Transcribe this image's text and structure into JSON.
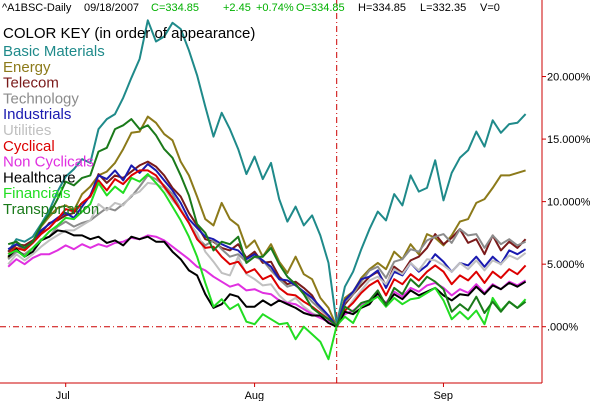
{
  "header": {
    "symbol": "^A1BSC-Daily",
    "date": "09/18/2007",
    "close": "C=334.85",
    "change": "+2.45",
    "pct": "+0.74%",
    "open": "O=334.85",
    "high": "H=334.85",
    "low": "L=332.35",
    "volume": "V=0"
  },
  "colors": {
    "background": "#ffffff",
    "axis": "#cc0000",
    "zero_line": "#cc0000",
    "header_green": "#00b000"
  },
  "chart_data": {
    "type": "line",
    "title": "COLOR KEY (in order of appearance)",
    "x_tick_labels": [
      "Jul",
      "Aug",
      "Sep"
    ],
    "x_tick_index": [
      7,
      30,
      53
    ],
    "y_tick_labels": [
      ".000%",
      "5.000%",
      "10.000%",
      "15.000%",
      "20.000%"
    ],
    "y_tick_values": [
      0,
      5,
      10,
      15,
      20
    ],
    "ylim": [
      -4.5,
      25
    ],
    "xlim": [
      -1,
      65
    ],
    "event_index": 40,
    "grid": false,
    "legend": "top-left",
    "series": [
      {
        "name": "Basic Materials",
        "color": "#1f8a8a",
        "values": [
          6.0,
          7.0,
          6.8,
          7.2,
          8.2,
          9.3,
          10.8,
          12.0,
          12.6,
          13.4,
          13.1,
          15.8,
          16.6,
          17.0,
          18.3,
          19.9,
          21.4,
          24.5,
          22.8,
          23.2,
          24.3,
          23.8,
          22.1,
          20.1,
          17.6,
          15.2,
          17.1,
          15.8,
          14.2,
          12.2,
          13.6,
          11.8,
          13.1,
          10.2,
          8.4,
          9.6,
          8.1,
          8.9,
          7.3,
          5.1,
          0.2,
          3.2,
          4.4,
          6.2,
          7.8,
          9.2,
          8.5,
          10.6,
          9.7,
          12.1,
          10.8,
          11.1,
          13.3,
          10.1,
          12.3,
          13.5,
          14.1,
          15.6,
          14.4,
          16.5,
          15.5,
          16.2,
          16.3,
          17.0
        ]
      },
      {
        "name": "Energy",
        "color": "#8c7a1a",
        "values": [
          5.5,
          6.6,
          6.1,
          6.8,
          8.0,
          8.8,
          9.5,
          9.7,
          9.3,
          10.6,
          11.2,
          12.1,
          12.4,
          13.1,
          14.2,
          15.5,
          15.6,
          16.8,
          16.3,
          15.4,
          14.9,
          13.2,
          12.1,
          10.4,
          8.6,
          8.1,
          9.9,
          8.6,
          8.1,
          6.3,
          6.9,
          5.6,
          6.6,
          5.2,
          4.3,
          5.6,
          4.2,
          3.8,
          2.3,
          1.5,
          0.0,
          2.3,
          2.8,
          3.9,
          4.6,
          5.1,
          4.6,
          6.0,
          5.4,
          6.6,
          5.8,
          7.4,
          7.1,
          6.5,
          7.3,
          8.4,
          8.6,
          9.9,
          10.2,
          11.1,
          12.1,
          12.1,
          12.3,
          12.5
        ]
      },
      {
        "name": "Telecom",
        "color": "#7a1a1a",
        "values": [
          6.0,
          6.6,
          6.5,
          6.9,
          7.5,
          8.3,
          8.5,
          8.9,
          9.1,
          9.9,
          10.4,
          12.2,
          11.5,
          12.1,
          11.9,
          12.4,
          12.9,
          13.2,
          12.8,
          12.1,
          11.1,
          10.4,
          9.1,
          8.1,
          7.0,
          6.8,
          6.3,
          6.1,
          6.6,
          5.5,
          6.0,
          5.1,
          5.2,
          4.0,
          3.4,
          3.6,
          3.1,
          2.5,
          1.4,
          0.9,
          0.0,
          1.8,
          2.6,
          3.3,
          4.0,
          4.4,
          3.3,
          4.8,
          4.3,
          5.3,
          5.6,
          6.3,
          7.4,
          6.6,
          7.1,
          7.8,
          6.7,
          7.0,
          5.8,
          7.3,
          6.1,
          6.8,
          6.3,
          7.0
        ]
      },
      {
        "name": "Technology",
        "color": "#8c8c8c",
        "values": [
          5.4,
          6.0,
          5.8,
          6.3,
          7.0,
          7.2,
          8.0,
          8.4,
          8.0,
          8.3,
          8.5,
          9.0,
          9.5,
          9.3,
          9.8,
          10.4,
          11.2,
          12.1,
          11.8,
          11.3,
          10.6,
          9.4,
          8.3,
          7.1,
          6.5,
          6.9,
          6.2,
          5.6,
          5.8,
          5.2,
          5.6,
          5.3,
          4.5,
          3.8,
          3.2,
          3.4,
          2.7,
          2.0,
          1.4,
          0.8,
          0.1,
          2.0,
          2.6,
          3.6,
          4.5,
          4.8,
          3.9,
          5.2,
          5.4,
          6.2,
          6.0,
          6.9,
          7.2,
          7.4,
          6.7,
          7.8,
          7.3,
          7.4,
          6.3,
          7.3,
          6.6,
          7.0,
          6.5,
          6.8
        ]
      },
      {
        "name": "Industrials",
        "color": "#1a1ab0",
        "values": [
          6.2,
          6.6,
          6.3,
          6.8,
          7.7,
          8.2,
          8.7,
          9.1,
          8.7,
          9.6,
          10.5,
          12.1,
          11.8,
          12.5,
          11.7,
          12.9,
          12.3,
          13.0,
          12.5,
          11.7,
          10.9,
          9.9,
          8.6,
          7.9,
          7.2,
          7.0,
          6.6,
          6.3,
          6.1,
          5.4,
          5.8,
          5.3,
          4.8,
          3.8,
          3.7,
          3.3,
          2.8,
          2.3,
          1.6,
          0.9,
          0.0,
          2.1,
          2.8,
          3.8,
          4.0,
          4.5,
          3.1,
          4.4,
          4.1,
          5.1,
          4.4,
          4.9,
          5.8,
          5.2,
          4.4,
          5.1,
          4.9,
          5.6,
          4.8,
          5.6,
          5.0,
          6.1,
          5.8,
          6.2
        ]
      },
      {
        "name": "Utilities",
        "color": "#c0c0c0",
        "values": [
          5.0,
          5.8,
          5.3,
          5.8,
          6.4,
          6.9,
          7.3,
          7.7,
          7.7,
          8.1,
          8.5,
          9.8,
          9.3,
          9.9,
          9.7,
          10.5,
          10.8,
          11.5,
          11.4,
          11.1,
          10.1,
          9.4,
          8.3,
          7.5,
          6.0,
          5.2,
          4.3,
          4.1,
          5.6,
          4.2,
          3.8,
          3.3,
          3.4,
          2.5,
          1.9,
          2.3,
          1.6,
          1.1,
          0.8,
          0.4,
          0.1,
          1.2,
          2.1,
          2.9,
          3.7,
          4.0,
          3.4,
          4.6,
          4.2,
          5.1,
          4.5,
          5.4,
          5.3,
          4.9,
          4.4,
          5.1,
          4.6,
          5.3,
          4.5,
          5.3,
          5.0,
          5.7,
          5.4,
          5.9
        ]
      },
      {
        "name": "Cyclical",
        "color": "#dd0000",
        "values": [
          5.8,
          6.3,
          6.1,
          6.7,
          7.4,
          7.9,
          8.6,
          9.4,
          9.2,
          9.9,
          10.4,
          11.7,
          10.9,
          11.8,
          11.4,
          12.1,
          12.5,
          12.5,
          12.1,
          11.2,
          10.3,
          9.3,
          8.3,
          7.0,
          6.3,
          6.4,
          5.6,
          5.0,
          5.2,
          4.3,
          4.6,
          3.8,
          4.1,
          3.1,
          2.6,
          2.5,
          2.0,
          1.6,
          1.1,
          0.6,
          0.0,
          1.3,
          1.9,
          2.7,
          3.3,
          3.7,
          2.5,
          3.8,
          3.4,
          4.2,
          3.7,
          4.4,
          4.9,
          4.4,
          3.4,
          4.1,
          3.7,
          4.4,
          3.5,
          4.4,
          3.9,
          4.6,
          4.2,
          4.9
        ]
      },
      {
        "name": "Non Cyclicals",
        "color": "#e030e0",
        "values": [
          4.8,
          5.4,
          5.0,
          5.5,
          5.8,
          5.8,
          6.1,
          6.5,
          6.2,
          6.6,
          6.3,
          6.6,
          6.4,
          6.7,
          6.8,
          7.1,
          7.0,
          7.3,
          7.2,
          6.9,
          6.4,
          5.9,
          5.4,
          4.8,
          4.5,
          4.0,
          3.6,
          3.2,
          3.4,
          2.9,
          3.0,
          2.7,
          2.6,
          2.1,
          1.9,
          1.8,
          1.4,
          1.0,
          0.7,
          0.4,
          0.0,
          1.0,
          1.3,
          1.8,
          2.1,
          2.5,
          1.9,
          2.8,
          2.4,
          3.1,
          2.8,
          3.3,
          3.5,
          3.1,
          2.5,
          3.0,
          2.7,
          3.4,
          2.7,
          3.4,
          3.0,
          3.6,
          3.3,
          3.7
        ]
      },
      {
        "name": "Healthcare",
        "color": "#000000",
        "values": [
          5.6,
          6.2,
          5.6,
          6.0,
          6.9,
          7.2,
          7.7,
          7.6,
          7.3,
          7.3,
          7.0,
          7.2,
          6.7,
          6.9,
          6.5,
          7.2,
          7.0,
          7.2,
          6.8,
          6.8,
          6.0,
          5.4,
          4.5,
          4.1,
          2.6,
          1.5,
          1.8,
          2.6,
          2.4,
          1.6,
          1.6,
          2.1,
          1.7,
          2.1,
          1.8,
          1.5,
          1.1,
          0.9,
          0.9,
          0.3,
          0.0,
          1.2,
          1.0,
          1.5,
          1.8,
          2.7,
          1.8,
          2.6,
          2.2,
          2.9,
          2.5,
          2.8,
          3.1,
          2.5,
          2.1,
          2.6,
          2.5,
          3.2,
          2.6,
          3.3,
          3.0,
          3.5,
          3.2,
          3.6
        ]
      },
      {
        "name": "Financials",
        "color": "#22dd22",
        "values": [
          5.8,
          6.1,
          5.6,
          6.3,
          6.9,
          7.6,
          8.1,
          8.7,
          8.6,
          9.2,
          9.8,
          11.5,
          10.5,
          11.2,
          10.7,
          11.9,
          11.6,
          12.2,
          11.5,
          10.7,
          9.6,
          8.5,
          7.2,
          5.6,
          3.5,
          1.6,
          2.2,
          1.4,
          1.8,
          0.4,
          0.2,
          1.0,
          0.6,
          0.2,
          0.3,
          -1.0,
          0.0,
          -0.6,
          -1.2,
          -2.6,
          0.1,
          0.8,
          0.3,
          1.6,
          2.0,
          2.4,
          1.6,
          2.3,
          1.8,
          2.2,
          2.3,
          2.7,
          3.1,
          2.1,
          0.6,
          1.2,
          0.6,
          1.3,
          0.2,
          2.3,
          1.3,
          2.0,
          1.5,
          2.2
        ]
      },
      {
        "name": "Transportation",
        "color": "#1a7a1a",
        "values": [
          6.6,
          6.8,
          6.3,
          6.8,
          8.1,
          9.0,
          10.2,
          11.6,
          11.3,
          11.9,
          12.1,
          14.0,
          14.3,
          15.8,
          16.1,
          16.6,
          15.8,
          16.1,
          15.3,
          14.2,
          13.5,
          12.1,
          10.5,
          8.2,
          7.5,
          6.1,
          6.8,
          6.6,
          7.2,
          5.1,
          5.6,
          5.6,
          6.3,
          5.0,
          4.0,
          3.4,
          2.6,
          1.5,
          1.0,
          0.6,
          0.1,
          1.6,
          1.2,
          1.9,
          2.1,
          2.9,
          1.7,
          3.1,
          2.6,
          3.8,
          3.2,
          4.0,
          3.6,
          3.0,
          1.2,
          1.8,
          1.3,
          2.4,
          1.1,
          2.0,
          1.2,
          2.0,
          1.5,
          2.0
        ]
      }
    ]
  }
}
